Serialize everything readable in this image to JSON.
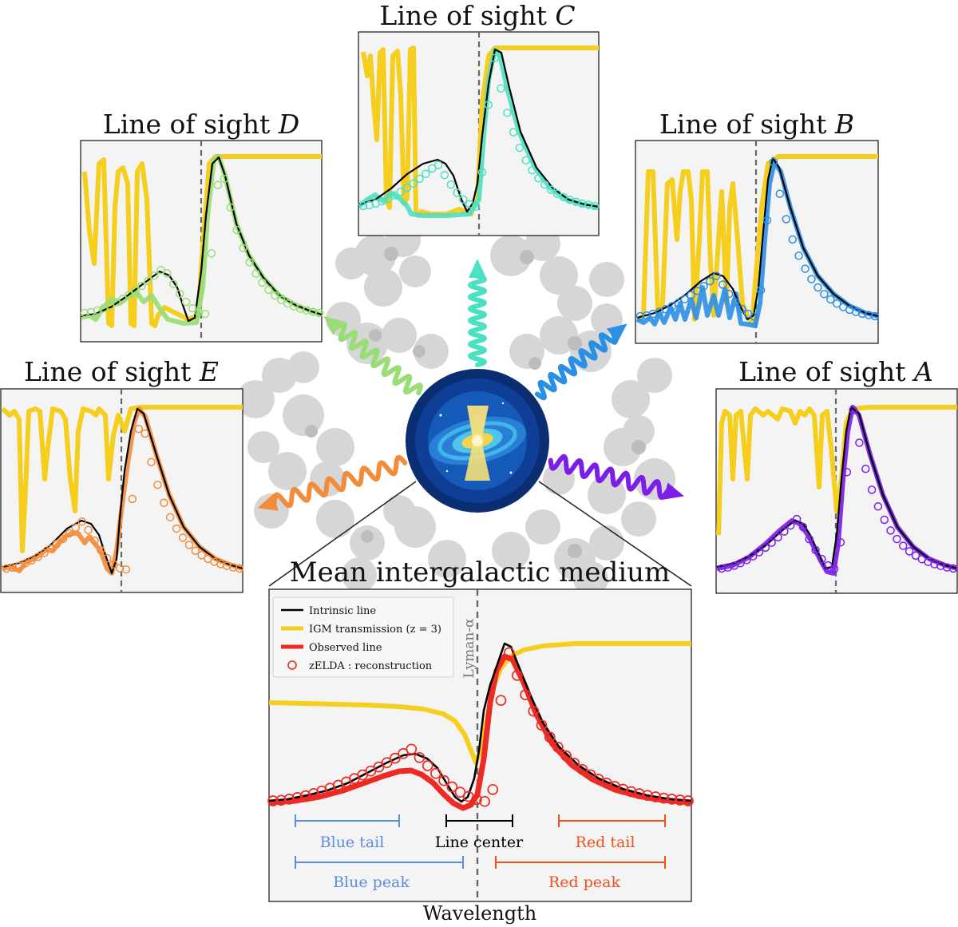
{
  "panels": {
    "C": {
      "title_prefix": "Line of sight ",
      "title_letter": "C"
    },
    "D": {
      "title_prefix": "Line of sight ",
      "title_letter": "D"
    },
    "B": {
      "title_prefix": "Line of sight ",
      "title_letter": "B"
    },
    "E": {
      "title_prefix": "Line of sight ",
      "title_letter": "E"
    },
    "A": {
      "title_prefix": "Line of sight ",
      "title_letter": "A"
    }
  },
  "main": {
    "title": "Mean intergalactic medium",
    "xlabel": "Wavelength",
    "vline_label": "Lyman-α",
    "legend": [
      {
        "label": "Intrinsic line",
        "color": "#000000",
        "kind": "line-thin"
      },
      {
        "label": "IGM transmission (z = 3)",
        "color": "#F5CE1E",
        "kind": "line-thick"
      },
      {
        "label": "Observed line",
        "color": "#EE2A24",
        "kind": "line-thick"
      },
      {
        "label": "zELDA : reconstruction",
        "color": "#EE2A24",
        "kind": "circle"
      }
    ],
    "regions": {
      "blue_tail": "Blue tail",
      "line_center": "Line center",
      "red_tail": "Red tail",
      "blue_peak": "Blue peak",
      "red_peak": "Red peak"
    }
  },
  "colors": {
    "A": "#7B1FE8",
    "B": "#2B8FE6",
    "C": "#4CE0C3",
    "D": "#9ADD77",
    "E": "#F28C3B",
    "igm": "#F5CE1E",
    "observed_main": "#EE2A24",
    "blue_region": "#5B8DE0",
    "red_region": "#F0501E",
    "panel_bg": "#F4F4F4",
    "galaxy": "#0E3E96"
  }
}
